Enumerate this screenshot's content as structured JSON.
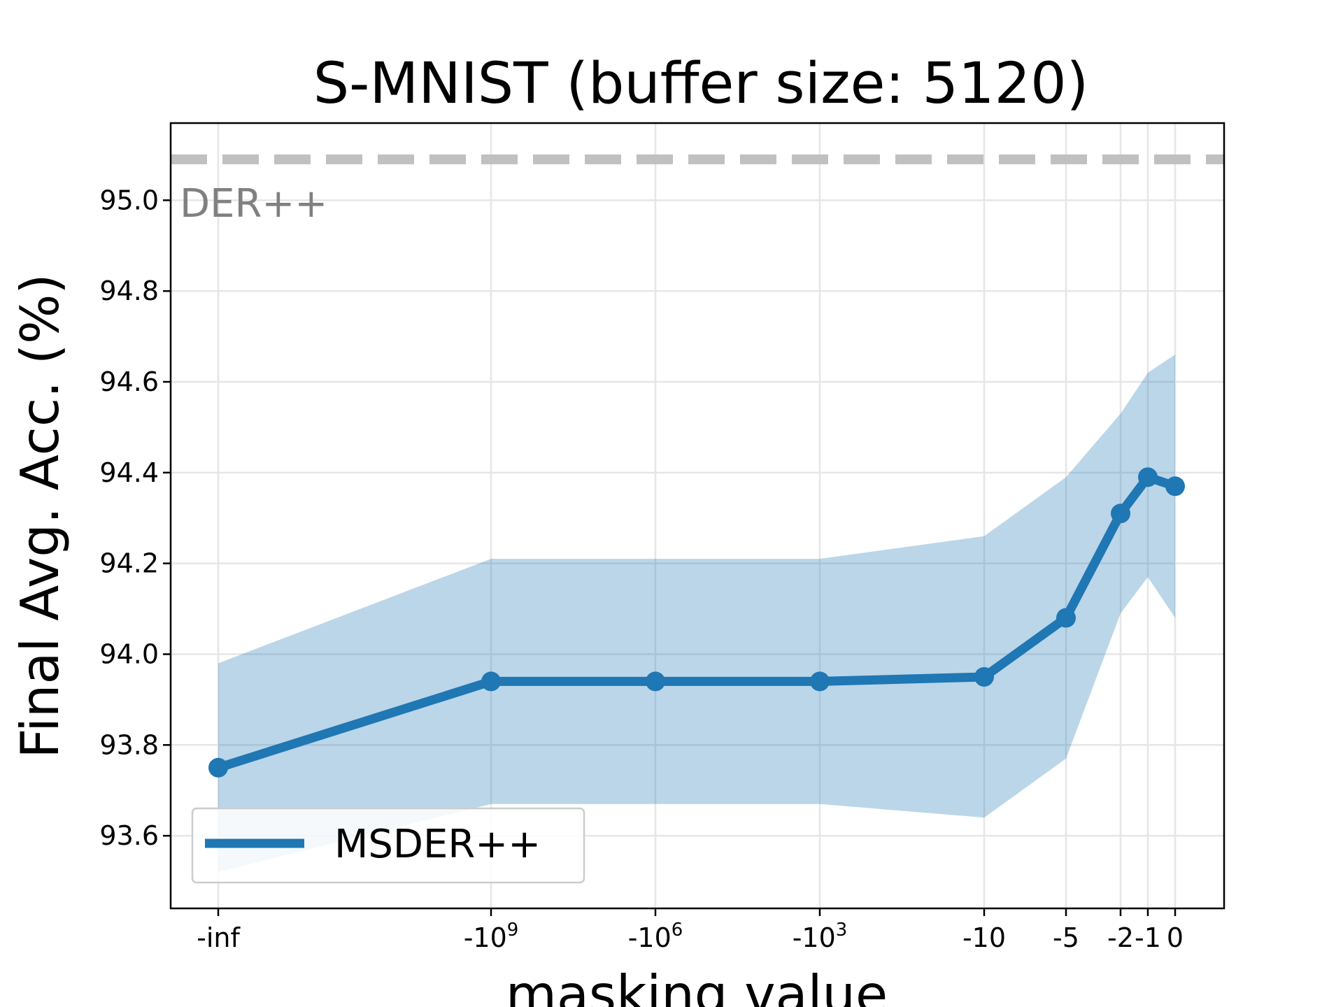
{
  "chart_data": {
    "type": "line",
    "title": "S-MNIST (buffer size: 5120)",
    "xlabel": "masking value",
    "ylabel": "Final Avg. Acc. (%)",
    "x_ticks": [
      {
        "base": "-inf",
        "sup": ""
      },
      {
        "base": "-10",
        "sup": "9"
      },
      {
        "base": "-10",
        "sup": "6"
      },
      {
        "base": "-10",
        "sup": "3"
      },
      {
        "base": "-10",
        "sup": ""
      },
      {
        "base": "-5",
        "sup": ""
      },
      {
        "base": "-2",
        "sup": ""
      },
      {
        "base": "-1",
        "sup": ""
      },
      {
        "base": "0",
        "sup": ""
      }
    ],
    "y_ticks": [
      "93.6",
      "93.8",
      "94.0",
      "94.2",
      "94.4",
      "94.6",
      "94.8",
      "95.0"
    ],
    "ylim": [
      93.44,
      95.17
    ],
    "grid": true,
    "legend_position": "lower-left",
    "series": [
      {
        "name": "MSDER++",
        "color": "#1f77b4",
        "values": [
          93.75,
          93.94,
          93.94,
          93.94,
          93.95,
          94.08,
          94.31,
          94.39,
          94.37
        ],
        "band_upper": [
          93.98,
          94.21,
          94.21,
          94.21,
          94.26,
          94.39,
          94.53,
          94.62,
          94.66
        ],
        "band_lower": [
          93.52,
          93.67,
          93.67,
          93.67,
          93.64,
          93.77,
          94.09,
          94.17,
          94.08
        ]
      }
    ],
    "reference_line": {
      "label": "DER++",
      "value": 95.09,
      "color": "#c0c0c0",
      "label_color": "#808080"
    }
  }
}
